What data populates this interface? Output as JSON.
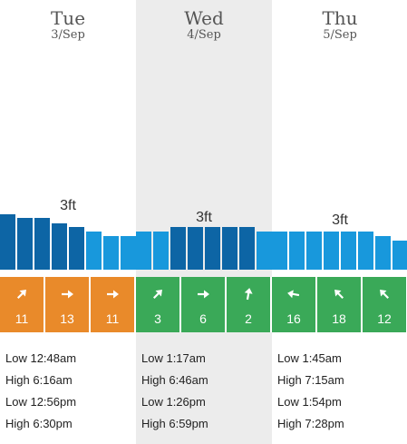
{
  "colors": {
    "shade": "#ececec",
    "bar_dark": "#0d65a5",
    "bar_light": "#1898dc",
    "wind_orange": "#e98a2a",
    "wind_green": "#3aa958"
  },
  "days": [
    {
      "name": "Tue",
      "date": "3/Sep",
      "shaded": false,
      "wave_height": "3ft",
      "swell_bars": [
        {
          "level": 0.95,
          "tone": "dark"
        },
        {
          "level": 0.89,
          "tone": "dark"
        },
        {
          "level": 0.89,
          "tone": "dark"
        },
        {
          "level": 0.8,
          "tone": "dark"
        },
        {
          "level": 0.73,
          "tone": "dark"
        },
        {
          "level": 0.66,
          "tone": "light"
        },
        {
          "level": 0.58,
          "tone": "light"
        },
        {
          "level": 0.58,
          "tone": "light"
        }
      ],
      "wind": [
        {
          "speed": "11",
          "direction_deg": 45,
          "color": "orange",
          "icon": "arrow-icon"
        },
        {
          "speed": "13",
          "direction_deg": 90,
          "color": "orange",
          "icon": "arrow-icon"
        },
        {
          "speed": "11",
          "direction_deg": 90,
          "color": "orange",
          "icon": "arrow-icon"
        }
      ],
      "tides": [
        "Low 12:48am",
        "High 6:16am",
        "Low 12:56pm",
        "High 6:30pm"
      ]
    },
    {
      "name": "Wed",
      "date": "4/Sep",
      "shaded": true,
      "wave_height": "3ft",
      "swell_bars": [
        {
          "level": 0.66,
          "tone": "light"
        },
        {
          "level": 0.66,
          "tone": "light"
        },
        {
          "level": 0.73,
          "tone": "dark"
        },
        {
          "level": 0.73,
          "tone": "dark"
        },
        {
          "level": 0.73,
          "tone": "dark"
        },
        {
          "level": 0.73,
          "tone": "dark"
        },
        {
          "level": 0.73,
          "tone": "dark"
        },
        {
          "level": 0.66,
          "tone": "light"
        }
      ],
      "wind": [
        {
          "speed": "3",
          "direction_deg": 45,
          "color": "green",
          "icon": "arrow-icon"
        },
        {
          "speed": "6",
          "direction_deg": 90,
          "color": "green",
          "icon": "arrow-icon"
        },
        {
          "speed": "2",
          "direction_deg": 10,
          "color": "green",
          "icon": "arrow-icon"
        }
      ],
      "tides": [
        "Low 1:17am",
        "High 6:46am",
        "Low 1:26pm",
        "High 6:59pm"
      ]
    },
    {
      "name": "Thu",
      "date": "5/Sep",
      "shaded": false,
      "wave_height": "3ft",
      "swell_bars": [
        {
          "level": 0.66,
          "tone": "light"
        },
        {
          "level": 0.66,
          "tone": "light"
        },
        {
          "level": 0.66,
          "tone": "light"
        },
        {
          "level": 0.66,
          "tone": "light"
        },
        {
          "level": 0.66,
          "tone": "light"
        },
        {
          "level": 0.66,
          "tone": "light"
        },
        {
          "level": 0.58,
          "tone": "light"
        },
        {
          "level": 0.5,
          "tone": "light"
        }
      ],
      "wind": [
        {
          "speed": "16",
          "direction_deg": 280,
          "color": "green",
          "icon": "arrow-icon"
        },
        {
          "speed": "18",
          "direction_deg": 315,
          "color": "green",
          "icon": "arrow-icon"
        },
        {
          "speed": "12",
          "direction_deg": 315,
          "color": "green",
          "icon": "arrow-icon"
        }
      ],
      "tides": [
        "Low 1:45am",
        "High 7:15am",
        "Low 1:54pm",
        "High 7:28pm"
      ]
    }
  ]
}
